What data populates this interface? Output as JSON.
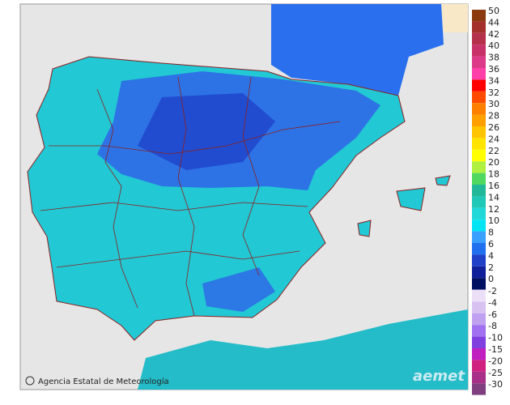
{
  "legend": {
    "upper": [
      {
        "label": "50",
        "color": "#8b3a0f"
      },
      {
        "label": "44",
        "color": "#a3302a"
      },
      {
        "label": "42",
        "color": "#b5304a"
      },
      {
        "label": "40",
        "color": "#c83068"
      },
      {
        "label": "38",
        "color": "#dc3a88"
      },
      {
        "label": "36",
        "color": "#ff40a8"
      },
      {
        "label": "34",
        "color": "#ff0000"
      },
      {
        "label": "32",
        "color": "#ff4a00"
      },
      {
        "label": "30",
        "color": "#ff7f00"
      },
      {
        "label": "28",
        "color": "#ffa000"
      },
      {
        "label": "26",
        "color": "#ffc400"
      },
      {
        "label": "24",
        "color": "#ffe400"
      },
      {
        "label": "22",
        "color": "#ffff00"
      },
      {
        "label": "20",
        "color": "#b0f040"
      },
      {
        "label": "18",
        "color": "#50d860"
      },
      {
        "label": "16",
        "color": "#20b898"
      },
      {
        "label": "14",
        "color": "#20c8b8"
      },
      {
        "label": "12",
        "color": "#20d8d8"
      },
      {
        "label": "10",
        "color": "#00e4f4"
      },
      {
        "label": "8",
        "color": "#3aa0ff"
      },
      {
        "label": "6",
        "color": "#2070f0"
      },
      {
        "label": "4",
        "color": "#2040c8"
      },
      {
        "label": "2",
        "color": "#10209a"
      },
      {
        "label": "0",
        "color": "#001060"
      }
    ],
    "lower": [
      {
        "label": "-2",
        "color": "#ecdff8"
      },
      {
        "label": "-4",
        "color": "#d8c2f2"
      },
      {
        "label": "-6",
        "color": "#c0a0f0"
      },
      {
        "label": "-8",
        "color": "#a070f0"
      },
      {
        "label": "-10",
        "color": "#8040e0"
      },
      {
        "label": "-15",
        "color": "#c020c0"
      },
      {
        "label": "-20",
        "color": "#d02080"
      },
      {
        "label": "-25",
        "color": "#a83088"
      },
      {
        "label": "-30",
        "color": "#804080"
      }
    ]
  },
  "credit": "Agencia Estatal de Meteorología",
  "logo": "aemet"
}
